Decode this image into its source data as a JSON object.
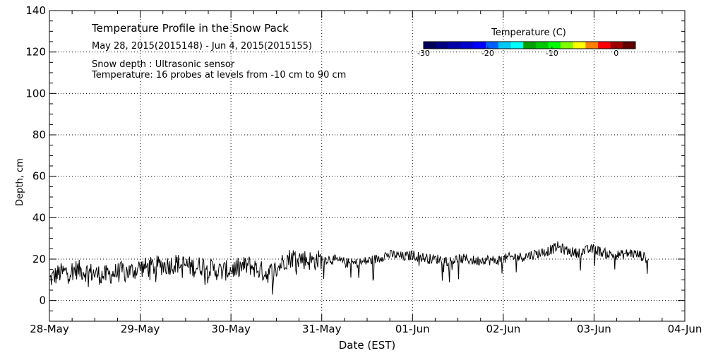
{
  "chart_data": {
    "type": "line",
    "title": "Temperature Profile in the Snow Pack",
    "subtitle": "May 28, 2015(2015148) - Jun  4, 2015(2015155)",
    "notes": [
      "Snow depth : Ultrasonic sensor",
      "Temperature: 16 probes at levels from -10 cm to 90 cm"
    ],
    "xlabel": "Date (EST)",
    "ylabel": "Depth, cm",
    "xlim": [
      "2015-05-28",
      "2015-06-04"
    ],
    "ylim": [
      -10,
      140
    ],
    "y_ticks": [
      0,
      20,
      40,
      60,
      80,
      100,
      120,
      140
    ],
    "x_ticks": [
      "28-May",
      "29-May",
      "30-May",
      "31-May",
      "01-Jun",
      "02-Jun",
      "03-Jun",
      "04-Jun"
    ],
    "grid": true,
    "grid_style": "dotted",
    "colorbar": {
      "label": "Temperature (C)",
      "ticks": [
        "-30",
        "-20",
        "-10",
        "0"
      ],
      "colors": [
        "#00005a",
        "#000080",
        "#0000a8",
        "#0000cc",
        "#0000ff",
        "#0060ff",
        "#00c8ff",
        "#00ffff",
        "#00a000",
        "#00c800",
        "#00ff00",
        "#80ff00",
        "#ffff00",
        "#ff8000",
        "#ff0000",
        "#a00000",
        "#600000"
      ]
    },
    "series": [
      {
        "color": "#000000",
        "x_days": [
          "2015-05-28",
          "2015-05-29",
          "2015-05-30",
          "2015-05-31",
          "2015-06-01",
          "2015-06-02",
          "2015-06-03",
          "2015-06-04"
        ],
        "x": [
          0.0,
          0.1,
          0.2,
          0.3,
          0.4,
          0.5,
          0.6,
          0.7,
          0.8,
          0.9,
          1.0,
          1.1,
          1.2,
          1.3,
          1.4,
          1.5,
          1.6,
          1.7,
          1.8,
          1.9,
          2.0,
          2.1,
          2.2,
          2.3,
          2.4,
          2.5,
          2.6,
          2.7,
          2.8,
          2.9,
          3.0,
          3.1,
          3.2,
          3.3,
          3.4,
          3.5,
          3.6,
          3.7,
          3.8,
          3.9,
          4.0,
          4.1,
          4.2,
          4.3,
          4.4,
          4.5,
          4.6,
          4.7,
          4.8,
          4.9,
          5.0,
          5.1,
          5.2,
          5.3,
          5.4,
          5.5,
          5.6,
          5.7,
          5.8,
          5.9,
          6.0,
          6.1,
          6.2,
          6.3,
          6.4,
          6.5,
          6.6
        ],
        "y": [
          10,
          13,
          14,
          15,
          14,
          13,
          12,
          13,
          14,
          14,
          16,
          16,
          17,
          17,
          18,
          17,
          16,
          17,
          15,
          14,
          15,
          16,
          17,
          15,
          13,
          15,
          20,
          21,
          20,
          19,
          20,
          20,
          19,
          18,
          18,
          19,
          20,
          22,
          22,
          21,
          22,
          21,
          20,
          20,
          19,
          20,
          20,
          19,
          20,
          19,
          20,
          21,
          21,
          22,
          23,
          24,
          26,
          24,
          23,
          24,
          25,
          23,
          22,
          22,
          23,
          22,
          20
        ]
      }
    ]
  }
}
